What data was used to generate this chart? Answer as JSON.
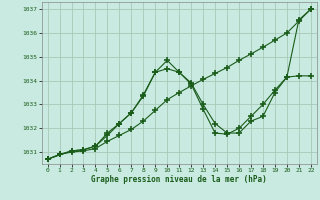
{
  "title": "Graphe pression niveau de la mer (hPa)",
  "bg_color": "#c8eae0",
  "grid_color": "#a8c8b8",
  "line_color": "#1a5c1a",
  "xlim": [
    -0.5,
    22.5
  ],
  "ylim": [
    1030.5,
    1037.3
  ],
  "xticks": [
    0,
    1,
    2,
    3,
    4,
    5,
    6,
    7,
    8,
    9,
    10,
    11,
    12,
    13,
    14,
    15,
    16,
    17,
    18,
    19,
    20,
    21,
    22
  ],
  "yticks": [
    1031,
    1032,
    1033,
    1034,
    1035,
    1036,
    1037
  ],
  "series1_x": [
    0,
    1,
    2,
    3,
    4,
    5,
    6,
    7,
    8,
    9,
    10,
    11,
    12,
    13,
    14,
    15,
    16,
    17,
    18,
    19,
    20,
    21,
    22
  ],
  "series1_y": [
    1030.7,
    1030.9,
    1031.0,
    1031.05,
    1031.15,
    1031.45,
    1031.7,
    1031.95,
    1032.3,
    1032.75,
    1033.2,
    1033.5,
    1033.78,
    1034.05,
    1034.3,
    1034.55,
    1034.85,
    1035.12,
    1035.4,
    1035.7,
    1036.0,
    1036.5,
    1037.0
  ],
  "series2_x": [
    0,
    1,
    2,
    3,
    4,
    5,
    6,
    7,
    8,
    9,
    10,
    11,
    12,
    13,
    14,
    15,
    16,
    17,
    18,
    19,
    20,
    21,
    22
  ],
  "series2_y": [
    1030.7,
    1030.9,
    1031.05,
    1031.1,
    1031.25,
    1031.7,
    1032.2,
    1032.65,
    1033.4,
    1034.35,
    1034.85,
    1034.35,
    1033.9,
    1033.0,
    1032.2,
    1031.8,
    1031.8,
    1032.3,
    1032.5,
    1033.5,
    1034.15,
    1036.55,
    1037.0
  ],
  "series3_x": [
    0,
    2,
    3,
    4,
    5,
    6,
    7,
    8,
    9,
    10,
    11,
    12,
    13,
    14,
    15,
    16,
    17,
    18,
    19,
    20,
    21,
    22
  ],
  "series3_y": [
    1030.7,
    1031.05,
    1031.1,
    1031.25,
    1031.8,
    1032.2,
    1032.65,
    1033.35,
    1034.35,
    1034.5,
    1034.35,
    1033.85,
    1032.8,
    1031.8,
    1031.75,
    1032.0,
    1032.5,
    1033.0,
    1033.6,
    1034.15,
    1034.2,
    1034.2
  ]
}
